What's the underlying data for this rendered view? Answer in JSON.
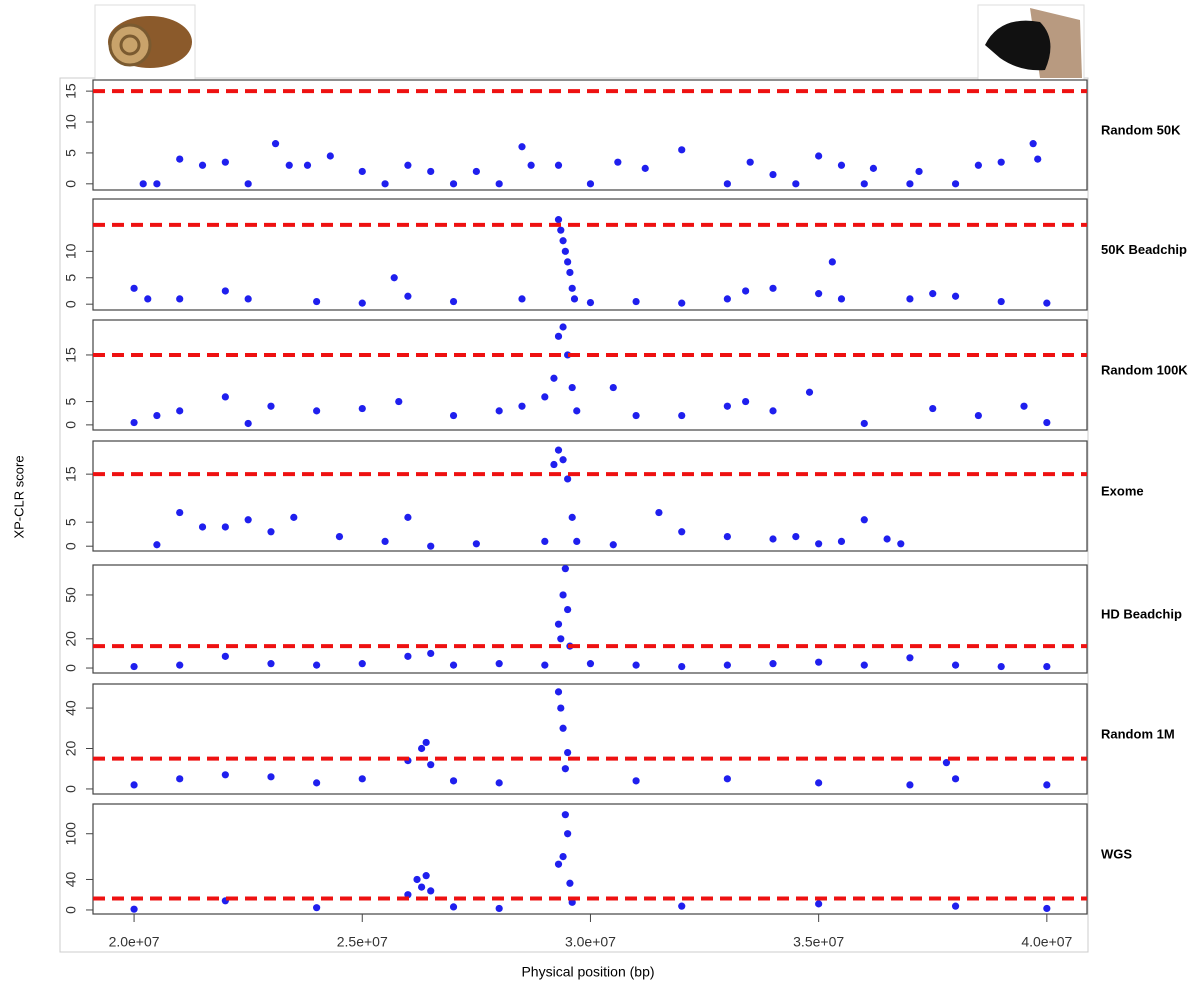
{
  "chart_data": [
    {
      "type": "scatter",
      "panel_label": "Random 50K",
      "ylabel": "XP-CLR score",
      "color": "#1f1fee",
      "threshold": 15,
      "threshold_color": "#ee1111",
      "xlim": [
        19100000,
        40880000
      ],
      "ylim": [
        -1,
        16.8
      ],
      "yticks": [
        0,
        5,
        10,
        15
      ],
      "x": [
        20200000.0,
        20500000.0,
        21000000.0,
        21500000.0,
        22000000.0,
        22500000.0,
        23100000.0,
        23400000.0,
        23800000.0,
        24300000.0,
        25000000.0,
        25500000.0,
        26000000.0,
        26500000.0,
        27000000.0,
        27500000.0,
        28000000.0,
        28500000.0,
        28700000.0,
        29300000.0,
        30000000.0,
        30600000.0,
        31200000.0,
        32000000.0,
        33000000.0,
        33500000.0,
        34000000.0,
        34500000.0,
        35000000.0,
        35500000.0,
        36000000.0,
        36200000.0,
        37000000.0,
        37200000.0,
        38000000.0,
        38500000.0,
        39000000.0,
        39700000.0,
        39800000.0
      ],
      "values": [
        0,
        0,
        4,
        3,
        3.5,
        0,
        6.5,
        3,
        3,
        4.5,
        2,
        0,
        3,
        2,
        0,
        2,
        0,
        6,
        3,
        3,
        0,
        3.5,
        2.5,
        5.5,
        0,
        3.5,
        1.5,
        0,
        4.5,
        3,
        0,
        2.5,
        0,
        2,
        0,
        3,
        3.5,
        6.5,
        4
      ]
    },
    {
      "type": "scatter",
      "panel_label": "50K Beadchip",
      "color": "#1f1fee",
      "threshold": 15,
      "threshold_color": "#ee1111",
      "xlim": [
        19100000,
        40880000
      ],
      "ylim": [
        -1.1,
        19.9
      ],
      "yticks": [
        0,
        5,
        10
      ],
      "x": [
        20000000.0,
        20300000.0,
        21000000.0,
        22000000.0,
        22500000.0,
        24000000.0,
        25000000.0,
        25700000.0,
        26000000.0,
        27000000.0,
        28500000.0,
        29300000.0,
        29350000.0,
        29400000.0,
        29450000.0,
        29500000.0,
        29550000.0,
        29600000.0,
        29650000.0,
        30000000.0,
        31000000.0,
        32000000.0,
        33000000.0,
        33400000.0,
        34000000.0,
        35000000.0,
        35300000.0,
        35500000.0,
        37000000.0,
        37500000.0,
        38000000.0,
        39000000.0,
        40000000.0
      ],
      "values": [
        3,
        1,
        1,
        2.5,
        1,
        0.5,
        0.2,
        5,
        1.5,
        0.5,
        1,
        16,
        14,
        12,
        10,
        8,
        6,
        3,
        1,
        0.3,
        0.5,
        0.2,
        1,
        2.5,
        3,
        2,
        8,
        1,
        1,
        2,
        1.5,
        0.5,
        0.2
      ]
    },
    {
      "type": "scatter",
      "panel_label": "Random 100K",
      "color": "#1f1fee",
      "threshold": 15,
      "threshold_color": "#ee1111",
      "xlim": [
        19100000,
        40880000
      ],
      "ylim": [
        -1.1,
        22.5
      ],
      "yticks": [
        0,
        5,
        15
      ],
      "x": [
        20000000.0,
        20500000.0,
        21000000.0,
        22000000.0,
        22500000.0,
        23000000.0,
        24000000.0,
        25000000.0,
        25800000.0,
        27000000.0,
        28000000.0,
        28500000.0,
        29000000.0,
        29200000.0,
        29300000.0,
        29400000.0,
        29500000.0,
        29600000.0,
        29700000.0,
        30500000.0,
        31000000.0,
        32000000.0,
        33000000.0,
        33400000.0,
        34000000.0,
        34800000.0,
        36000000.0,
        37500000.0,
        38500000.0,
        39500000.0,
        40000000.0
      ],
      "values": [
        0.5,
        2,
        3,
        6,
        0.3,
        4,
        3,
        3.5,
        5,
        2,
        3,
        4,
        6,
        10,
        19,
        21,
        15,
        8,
        3,
        8,
        2,
        2,
        4,
        5,
        3,
        7,
        0.3,
        3.5,
        2,
        4,
        0.5
      ]
    },
    {
      "type": "scatter",
      "panel_label": "Exome",
      "color": "#1f1fee",
      "threshold": 15,
      "threshold_color": "#ee1111",
      "xlim": [
        19100000,
        40880000
      ],
      "ylim": [
        -1,
        21.9
      ],
      "yticks": [
        0,
        5,
        15
      ],
      "x": [
        20500000.0,
        21000000.0,
        21500000.0,
        22000000.0,
        22500000.0,
        23000000.0,
        23500000.0,
        24500000.0,
        25500000.0,
        26000000.0,
        26500000.0,
        27500000.0,
        29000000.0,
        29200000.0,
        29300000.0,
        29400000.0,
        29500000.0,
        29600000.0,
        29700000.0,
        30500000.0,
        31500000.0,
        32000000.0,
        33000000.0,
        34000000.0,
        34500000.0,
        35000000.0,
        35500000.0,
        36000000.0,
        36500000.0,
        36800000.0
      ],
      "values": [
        0.3,
        7,
        4,
        4,
        5.5,
        3,
        6,
        2,
        1,
        6,
        0,
        0.5,
        1,
        17,
        20,
        18,
        14,
        6,
        1,
        0.3,
        7,
        3,
        2,
        1.5,
        2,
        0.5,
        1,
        5.5,
        1.5,
        0.5
      ]
    },
    {
      "type": "scatter",
      "panel_label": "HD Beadchip",
      "color": "#1f1fee",
      "threshold": 15,
      "threshold_color": "#ee1111",
      "xlim": [
        19100000,
        40880000
      ],
      "ylim": [
        -3.4,
        70.5
      ],
      "yticks": [
        0,
        20,
        50
      ],
      "x": [
        20000000.0,
        21000000.0,
        22000000.0,
        23000000.0,
        24000000.0,
        25000000.0,
        26000000.0,
        26500000.0,
        27000000.0,
        28000000.0,
        29000000.0,
        29350000.0,
        29300000.0,
        29400000.0,
        29450000.0,
        29500000.0,
        29550000.0,
        30000000.0,
        31000000.0,
        32000000.0,
        33000000.0,
        34000000.0,
        35000000.0,
        36000000.0,
        37000000.0,
        38000000.0,
        39000000.0,
        40000000.0
      ],
      "values": [
        1,
        2,
        8,
        3,
        2,
        3,
        8,
        10,
        2,
        3,
        2,
        20,
        30,
        50,
        68,
        40,
        15,
        3,
        2,
        1,
        2,
        3,
        4,
        2,
        7,
        2,
        1,
        1
      ]
    },
    {
      "type": "scatter",
      "panel_label": "Random 1M",
      "color": "#1f1fee",
      "threshold": 15,
      "threshold_color": "#ee1111",
      "xlim": [
        19100000,
        40880000
      ],
      "ylim": [
        -2.5,
        51.9
      ],
      "yticks": [
        0,
        20,
        40
      ],
      "x": [
        20000000.0,
        21000000.0,
        22000000.0,
        23000000.0,
        24000000.0,
        25000000.0,
        26000000.0,
        26300000.0,
        26400000.0,
        26500000.0,
        27000000.0,
        28000000.0,
        29300000.0,
        29350000.0,
        29400000.0,
        29450000.0,
        29500000.0,
        31000000.0,
        33000000.0,
        35000000.0,
        37000000.0,
        37800000.0,
        38000000.0,
        40000000.0
      ],
      "values": [
        2,
        5,
        7,
        6,
        3,
        5,
        14,
        20,
        23,
        12,
        4,
        3,
        48,
        40,
        30,
        10,
        18,
        4,
        5,
        3,
        2,
        13,
        5,
        2
      ]
    },
    {
      "type": "scatter",
      "panel_label": "WGS",
      "color": "#1f1fee",
      "threshold": 15,
      "threshold_color": "#ee1111",
      "xlim": [
        19100000,
        40880000
      ],
      "ylim": [
        -5.3,
        139
      ],
      "yticks": [
        0,
        40,
        100
      ],
      "xlabel": "Physical position (bp)",
      "xticks": [
        {
          "value": 20000000,
          "label": "2.0e+07"
        },
        {
          "value": 25000000,
          "label": "2.5e+07"
        },
        {
          "value": 30000000,
          "label": "3.0e+07"
        },
        {
          "value": 35000000,
          "label": "3.5e+07"
        },
        {
          "value": 40000000,
          "label": "4.0e+07"
        }
      ],
      "x": [
        20000000.0,
        22000000.0,
        24000000.0,
        26000000.0,
        26200000.0,
        26300000.0,
        26400000.0,
        26500000.0,
        27000000.0,
        28000000.0,
        29300000.0,
        29400000.0,
        29450000.0,
        29500000.0,
        29550000.0,
        29600000.0,
        32000000.0,
        35000000.0,
        38000000.0,
        40000000.0
      ],
      "values": [
        1,
        12,
        3,
        20,
        40,
        30,
        45,
        25,
        4,
        2,
        60,
        70,
        125,
        100,
        35,
        10,
        5,
        8,
        5,
        2
      ]
    }
  ]
}
